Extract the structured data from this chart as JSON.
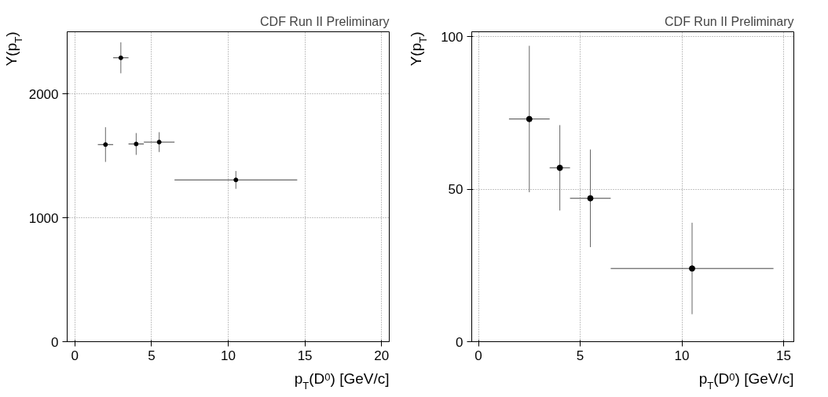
{
  "chart_data": [
    {
      "type": "scatter",
      "annotations": [
        "CDF Run II Preliminary"
      ],
      "xlabel": "p$_{T}$(D$^{0}$) [GeV/c]",
      "ylabel": "Y(p$_{T}$)",
      "x": [
        2,
        3,
        4,
        5.5,
        10.5
      ],
      "values": [
        1590,
        2290,
        1595,
        1610,
        1305
      ],
      "errors": [
        140,
        125,
        88,
        80,
        72
      ],
      "xerrors": [
        [
          1.5,
          2.5
        ],
        [
          2.5,
          3.5
        ],
        [
          3.5,
          4.5
        ],
        [
          4.5,
          6.5
        ],
        [
          6.5,
          14.5
        ]
      ],
      "color": "#000000",
      "marker": "circle",
      "grid": true,
      "xlim": [
        -0.5,
        20.5
      ],
      "xticks": [
        0,
        5,
        10,
        15,
        20
      ],
      "ylim": [
        0,
        2500
      ],
      "yticks": [
        0,
        1000,
        2000
      ]
    },
    {
      "type": "scatter",
      "annotations": [
        "CDF Run II Preliminary"
      ],
      "xlabel": "p$_{T}$(D$^{0}$) [GeV/c]",
      "ylabel": "Y(p$_{T}$)",
      "x": [
        2.5,
        4,
        5.5,
        10.5
      ],
      "values": [
        73,
        57,
        47,
        24
      ],
      "errors": [
        24,
        14,
        16,
        15
      ],
      "xerrors": [
        [
          1.5,
          3.5
        ],
        [
          3.5,
          4.5
        ],
        [
          4.5,
          6.5
        ],
        [
          6.5,
          14.5
        ]
      ],
      "color": "#000000",
      "marker": "circle",
      "grid": true,
      "xlim": [
        -0.33,
        15.5
      ],
      "xticks": [
        0,
        5,
        10,
        15
      ],
      "ylim": [
        0,
        101.6
      ],
      "yticks": [
        0,
        50,
        100
      ]
    }
  ]
}
